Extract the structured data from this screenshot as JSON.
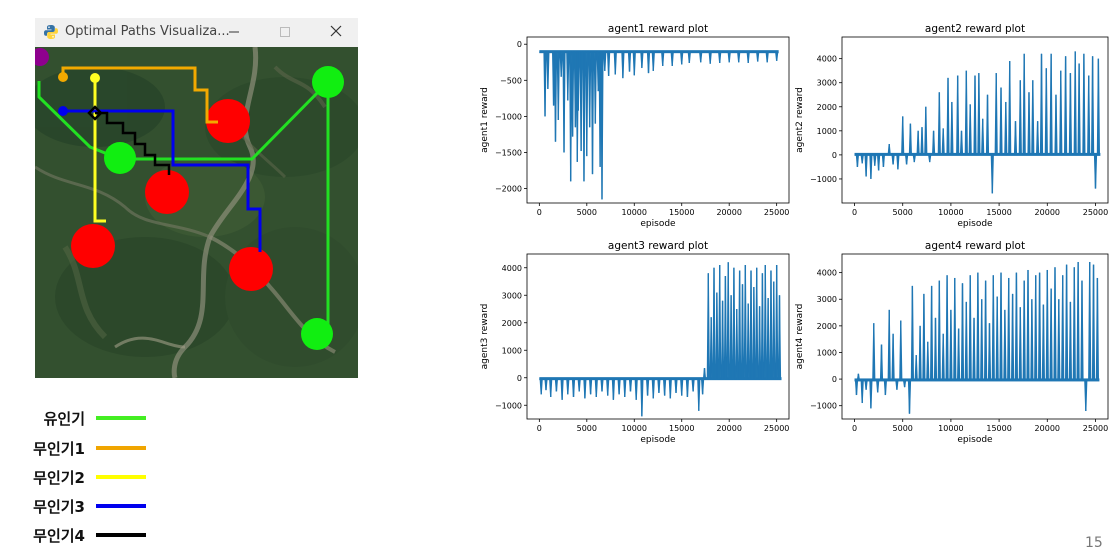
{
  "window": {
    "title": "Optimal Paths Visualiza...",
    "icon": "python-logo-icon",
    "min_glyph": "—",
    "max_glyph": "☐",
    "close_glyph": "✕"
  },
  "map": {
    "satellite_background": "forest-terrain",
    "path_colors": {
      "manned": "#22e022",
      "drone1": "#f2a900",
      "drone2": "#ffff22",
      "drone3": "#0000ee",
      "drone4": "#000000"
    },
    "obstacle_color": "#ff0000",
    "goal_color": "#11ee11",
    "start_color": "#8e008e"
  },
  "legend": [
    {
      "label": "유인기",
      "color": "#44ee22"
    },
    {
      "label": "무인기1",
      "color": "#f0a500"
    },
    {
      "label": "무인기2",
      "color": "#ffff00"
    },
    {
      "label": "무인기3",
      "color": "#0000ee"
    },
    {
      "label": "무인기4",
      "color": "#000000"
    }
  ],
  "chart_data": [
    {
      "type": "line",
      "title": "agent1 reward plot",
      "xlabel": "episode",
      "ylabel": "agent1 reward",
      "xlim": [
        -1300,
        26300
      ],
      "ylim": [
        -2200,
        100
      ],
      "xticks": [
        0,
        5000,
        10000,
        15000,
        20000,
        25000
      ],
      "yticks": [
        0,
        -500,
        -1000,
        -1500,
        -2000
      ],
      "ytick_labels": [
        "0",
        "−500",
        "−1000",
        "−1500",
        "−2000"
      ],
      "color": "#1f77b4",
      "grid": false,
      "legend": "none",
      "baseline": -110,
      "spikes": [
        [
          600,
          -1000
        ],
        [
          900,
          -620
        ],
        [
          1500,
          -850
        ],
        [
          1700,
          -1350
        ],
        [
          2000,
          -1050
        ],
        [
          2300,
          -450
        ],
        [
          2600,
          -1500
        ],
        [
          3000,
          -780
        ],
        [
          3300,
          -1900
        ],
        [
          3500,
          -1280
        ],
        [
          3800,
          -1150
        ],
        [
          4000,
          -1630
        ],
        [
          4100,
          -920
        ],
        [
          4400,
          -1480
        ],
        [
          4700,
          -1900
        ],
        [
          5000,
          -1550
        ],
        [
          5300,
          -1150
        ],
        [
          5600,
          -1800
        ],
        [
          5900,
          -1100
        ],
        [
          6200,
          -650
        ],
        [
          6400,
          -1700
        ],
        [
          6600,
          -2150
        ],
        [
          6900,
          -370
        ],
        [
          7300,
          -440
        ],
        [
          8000,
          -420
        ],
        [
          8800,
          -470
        ],
        [
          9500,
          -380
        ],
        [
          10000,
          -430
        ],
        [
          10800,
          -330
        ],
        [
          11500,
          -400
        ],
        [
          12000,
          -370
        ],
        [
          13000,
          -300
        ],
        [
          14000,
          -300
        ],
        [
          15000,
          -280
        ],
        [
          15800,
          -260
        ],
        [
          17000,
          -250
        ],
        [
          18000,
          -270
        ],
        [
          19000,
          -260
        ],
        [
          20000,
          -250
        ],
        [
          21000,
          -250
        ],
        [
          22000,
          -260
        ],
        [
          23000,
          -240
        ],
        [
          24000,
          -250
        ],
        [
          25000,
          -230
        ]
      ]
    },
    {
      "type": "line",
      "title": "agent2 reward plot",
      "xlabel": "episode",
      "ylabel": "agent2 reward",
      "xlim": [
        -1300,
        26300
      ],
      "ylim": [
        -2000,
        4900
      ],
      "xticks": [
        0,
        5000,
        10000,
        15000,
        20000,
        25000
      ],
      "yticks": [
        -1000,
        0,
        1000,
        2000,
        3000,
        4000
      ],
      "ytick_labels": [
        "−1000",
        "0",
        "1000",
        "2000",
        "3000",
        "4000"
      ],
      "color": "#1f77b4",
      "grid": false,
      "legend": "none",
      "baseline": 0,
      "spikes": [
        [
          300,
          -500
        ],
        [
          800,
          -350
        ],
        [
          1200,
          -900
        ],
        [
          1700,
          -1000
        ],
        [
          2100,
          -450
        ],
        [
          2500,
          -650
        ],
        [
          3000,
          -500
        ],
        [
          3600,
          450
        ],
        [
          4000,
          -400
        ],
        [
          4500,
          -600
        ],
        [
          5000,
          1600
        ],
        [
          5400,
          -400
        ],
        [
          5800,
          1300
        ],
        [
          6200,
          -300
        ],
        [
          6600,
          1000
        ],
        [
          7000,
          1150
        ],
        [
          7400,
          2000
        ],
        [
          7800,
          -300
        ],
        [
          8200,
          1000
        ],
        [
          8800,
          2600
        ],
        [
          9200,
          1100
        ],
        [
          9700,
          3200
        ],
        [
          10100,
          2200
        ],
        [
          10700,
          3300
        ],
        [
          11100,
          1000
        ],
        [
          11600,
          3500
        ],
        [
          12000,
          2100
        ],
        [
          12500,
          3300
        ],
        [
          12900,
          3400
        ],
        [
          13300,
          1500
        ],
        [
          13800,
          2500
        ],
        [
          14300,
          -1600
        ],
        [
          14700,
          3400
        ],
        [
          15200,
          2800
        ],
        [
          15700,
          2200
        ],
        [
          16100,
          3900
        ],
        [
          16700,
          1400
        ],
        [
          17200,
          3100
        ],
        [
          17600,
          4200
        ],
        [
          18100,
          2600
        ],
        [
          18500,
          3100
        ],
        [
          19000,
          1400
        ],
        [
          19400,
          4200
        ],
        [
          19900,
          3600
        ],
        [
          20400,
          4200
        ],
        [
          20900,
          2500
        ],
        [
          21400,
          3500
        ],
        [
          21900,
          4100
        ],
        [
          22400,
          3400
        ],
        [
          22900,
          4300
        ],
        [
          23300,
          3800
        ],
        [
          23800,
          4200
        ],
        [
          24300,
          3300
        ],
        [
          24700,
          4100
        ],
        [
          25000,
          -1400
        ],
        [
          25300,
          4000
        ]
      ]
    },
    {
      "type": "line",
      "title": "agent3 reward plot",
      "xlabel": "episode",
      "ylabel": "agent3 reward",
      "xlim": [
        -1300,
        26300
      ],
      "ylim": [
        -1500,
        4500
      ],
      "xticks": [
        0,
        5000,
        10000,
        15000,
        20000,
        25000
      ],
      "yticks": [
        -1000,
        0,
        1000,
        2000,
        3000,
        4000
      ],
      "ytick_labels": [
        "−1000",
        "0",
        "1000",
        "2000",
        "3000",
        "4000"
      ],
      "color": "#1f77b4",
      "grid": false,
      "legend": "none",
      "baseline": -50,
      "spikes": [
        [
          200,
          -600
        ],
        [
          700,
          -450
        ],
        [
          1200,
          -700
        ],
        [
          1800,
          -500
        ],
        [
          2400,
          -800
        ],
        [
          3000,
          -600
        ],
        [
          3600,
          -700
        ],
        [
          4200,
          -500
        ],
        [
          4800,
          -750
        ],
        [
          5400,
          -600
        ],
        [
          6000,
          -700
        ],
        [
          6600,
          -500
        ],
        [
          7200,
          -650
        ],
        [
          7800,
          -800
        ],
        [
          8400,
          -600
        ],
        [
          9000,
          -700
        ],
        [
          9600,
          -500
        ],
        [
          10200,
          -800
        ],
        [
          10800,
          -1400
        ],
        [
          11400,
          -650
        ],
        [
          12000,
          -750
        ],
        [
          12600,
          -550
        ],
        [
          13200,
          -650
        ],
        [
          13800,
          -750
        ],
        [
          14400,
          -550
        ],
        [
          15000,
          -650
        ],
        [
          15600,
          -700
        ],
        [
          16200,
          -500
        ],
        [
          16800,
          -1200
        ],
        [
          17200,
          -600
        ],
        [
          17400,
          350
        ],
        [
          17800,
          3800
        ],
        [
          18100,
          2200
        ],
        [
          18400,
          4000
        ],
        [
          18700,
          3100
        ],
        [
          19000,
          4100
        ],
        [
          19300,
          2800
        ],
        [
          19600,
          3700
        ],
        [
          19900,
          4200
        ],
        [
          20200,
          3000
        ],
        [
          20500,
          4000
        ],
        [
          20800,
          2500
        ],
        [
          21100,
          3900
        ],
        [
          21400,
          3400
        ],
        [
          21700,
          4100
        ],
        [
          22000,
          2700
        ],
        [
          22300,
          3900
        ],
        [
          22600,
          3300
        ],
        [
          22900,
          4000
        ],
        [
          23200,
          2600
        ],
        [
          23500,
          3800
        ],
        [
          23800,
          4100
        ],
        [
          24100,
          2900
        ],
        [
          24400,
          3900
        ],
        [
          24700,
          3500
        ],
        [
          25000,
          4100
        ],
        [
          25300,
          3000
        ]
      ]
    },
    {
      "type": "line",
      "title": "agent4 reward plot",
      "xlabel": "episode",
      "ylabel": "agent4 reward",
      "xlim": [
        -1300,
        26300
      ],
      "ylim": [
        -1500,
        4700
      ],
      "xticks": [
        0,
        5000,
        10000,
        15000,
        20000,
        25000
      ],
      "yticks": [
        -1000,
        0,
        1000,
        2000,
        3000,
        4000
      ],
      "ytick_labels": [
        "−1000",
        "0",
        "1000",
        "2000",
        "3000",
        "4000"
      ],
      "color": "#1f77b4",
      "grid": false,
      "legend": "none",
      "baseline": -50,
      "spikes": [
        [
          200,
          -600
        ],
        [
          400,
          200
        ],
        [
          800,
          -900
        ],
        [
          1200,
          -400
        ],
        [
          1700,
          -1100
        ],
        [
          2000,
          2100
        ],
        [
          2400,
          -500
        ],
        [
          2800,
          1300
        ],
        [
          3200,
          -600
        ],
        [
          3600,
          2600
        ],
        [
          4000,
          1700
        ],
        [
          4400,
          -400
        ],
        [
          4800,
          2200
        ],
        [
          5200,
          -300
        ],
        [
          5700,
          -1300
        ],
        [
          6000,
          3500
        ],
        [
          6400,
          900
        ],
        [
          6800,
          2000
        ],
        [
          7200,
          3200
        ],
        [
          7600,
          1400
        ],
        [
          8000,
          3500
        ],
        [
          8400,
          2300
        ],
        [
          8800,
          3700
        ],
        [
          9200,
          1700
        ],
        [
          9600,
          3900
        ],
        [
          10000,
          2600
        ],
        [
          10400,
          3800
        ],
        [
          10800,
          1900
        ],
        [
          11200,
          3600
        ],
        [
          11600,
          2900
        ],
        [
          12000,
          3900
        ],
        [
          12400,
          2300
        ],
        [
          12800,
          4000
        ],
        [
          13200,
          3000
        ],
        [
          13600,
          3700
        ],
        [
          14000,
          2100
        ],
        [
          14400,
          3900
        ],
        [
          14800,
          3100
        ],
        [
          15200,
          4000
        ],
        [
          15600,
          2600
        ],
        [
          16000,
          3800
        ],
        [
          16400,
          3200
        ],
        [
          16800,
          4000
        ],
        [
          17200,
          2700
        ],
        [
          17600,
          3700
        ],
        [
          18000,
          4100
        ],
        [
          18400,
          3000
        ],
        [
          18800,
          3900
        ],
        [
          19200,
          4000
        ],
        [
          19600,
          2800
        ],
        [
          20000,
          4100
        ],
        [
          20400,
          3400
        ],
        [
          20800,
          4200
        ],
        [
          21200,
          3000
        ],
        [
          21600,
          3900
        ],
        [
          22000,
          4300
        ],
        [
          22400,
          2900
        ],
        [
          22800,
          4200
        ],
        [
          23200,
          4400
        ],
        [
          23600,
          3700
        ],
        [
          24000,
          -1200
        ],
        [
          24400,
          4400
        ],
        [
          24800,
          4300
        ],
        [
          25200,
          3800
        ]
      ]
    }
  ],
  "page_number": "15"
}
